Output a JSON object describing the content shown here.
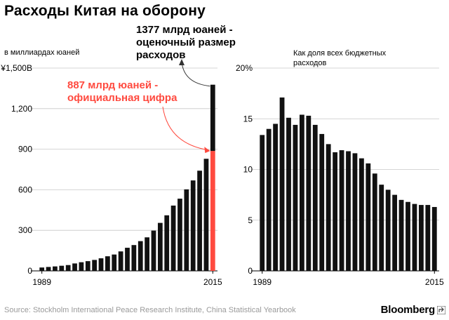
{
  "title": "Расходы Китая на оборону",
  "annotations": {
    "estimate": "1377 млрд юаней - оценочный размер расходов",
    "official": "887 млрд юаней - официальная цифра"
  },
  "source": "Source: Stockholm International Peace Research Institute, China Statistical Yearbook",
  "brand": "Bloomberg",
  "colors": {
    "bar": "#111111",
    "highlight": "#ff4a3f",
    "source": "#9a9a9a",
    "arrow": "#333333"
  },
  "chart_data": [
    {
      "type": "bar",
      "title": "",
      "ylabel": "в миллиардах юаней",
      "x": [
        1989,
        1990,
        1991,
        1992,
        1993,
        1994,
        1995,
        1996,
        1997,
        1998,
        1999,
        2000,
        2001,
        2002,
        2003,
        2004,
        2005,
        2006,
        2007,
        2008,
        2009,
        2010,
        2011,
        2012,
        2013,
        2014,
        2015
      ],
      "values": [
        25,
        29,
        33,
        38,
        43,
        55,
        64,
        72,
        81,
        93,
        108,
        121,
        144,
        171,
        191,
        220,
        248,
        298,
        355,
        411,
        483,
        534,
        603,
        669,
        741,
        829,
        887
      ],
      "highlight_year": 2015,
      "highlight_extra": 490,
      "ylim": [
        0,
        1500
      ],
      "yticks": [
        {
          "value": 0,
          "label": "0"
        },
        {
          "value": 300,
          "label": "300"
        },
        {
          "value": 600,
          "label": "600"
        },
        {
          "value": 900,
          "label": "900"
        },
        {
          "value": 1200,
          "label": "1,200"
        },
        {
          "value": 1500,
          "label": "¥1,500B"
        }
      ],
      "xtick_labels": [
        {
          "year": 1989,
          "label": "1989"
        },
        {
          "year": 2015,
          "label": "2015"
        }
      ]
    },
    {
      "type": "bar",
      "title": "",
      "ylabel": "Как доля всех бюджетных расходов",
      "x": [
        1989,
        1990,
        1991,
        1992,
        1993,
        1994,
        1995,
        1996,
        1997,
        1998,
        1999,
        2000,
        2001,
        2002,
        2003,
        2004,
        2005,
        2006,
        2007,
        2008,
        2009,
        2010,
        2011,
        2012,
        2013,
        2014,
        2015
      ],
      "values": [
        13.4,
        14.0,
        14.5,
        17.1,
        15.1,
        14.4,
        15.4,
        15.3,
        14.4,
        13.5,
        12.5,
        11.7,
        11.9,
        11.8,
        11.6,
        11.1,
        10.6,
        9.6,
        8.5,
        8.0,
        7.5,
        7.0,
        6.8,
        6.6,
        6.5,
        6.5,
        6.3
      ],
      "ylim": [
        0,
        20
      ],
      "yticks": [
        {
          "value": 0,
          "label": "0"
        },
        {
          "value": 5,
          "label": "5"
        },
        {
          "value": 10,
          "label": "10"
        },
        {
          "value": 15,
          "label": "15"
        },
        {
          "value": 20,
          "label": "20%"
        }
      ],
      "xtick_labels": [
        {
          "year": 1989,
          "label": "1989"
        },
        {
          "year": 2015,
          "label": "2015"
        }
      ]
    }
  ]
}
